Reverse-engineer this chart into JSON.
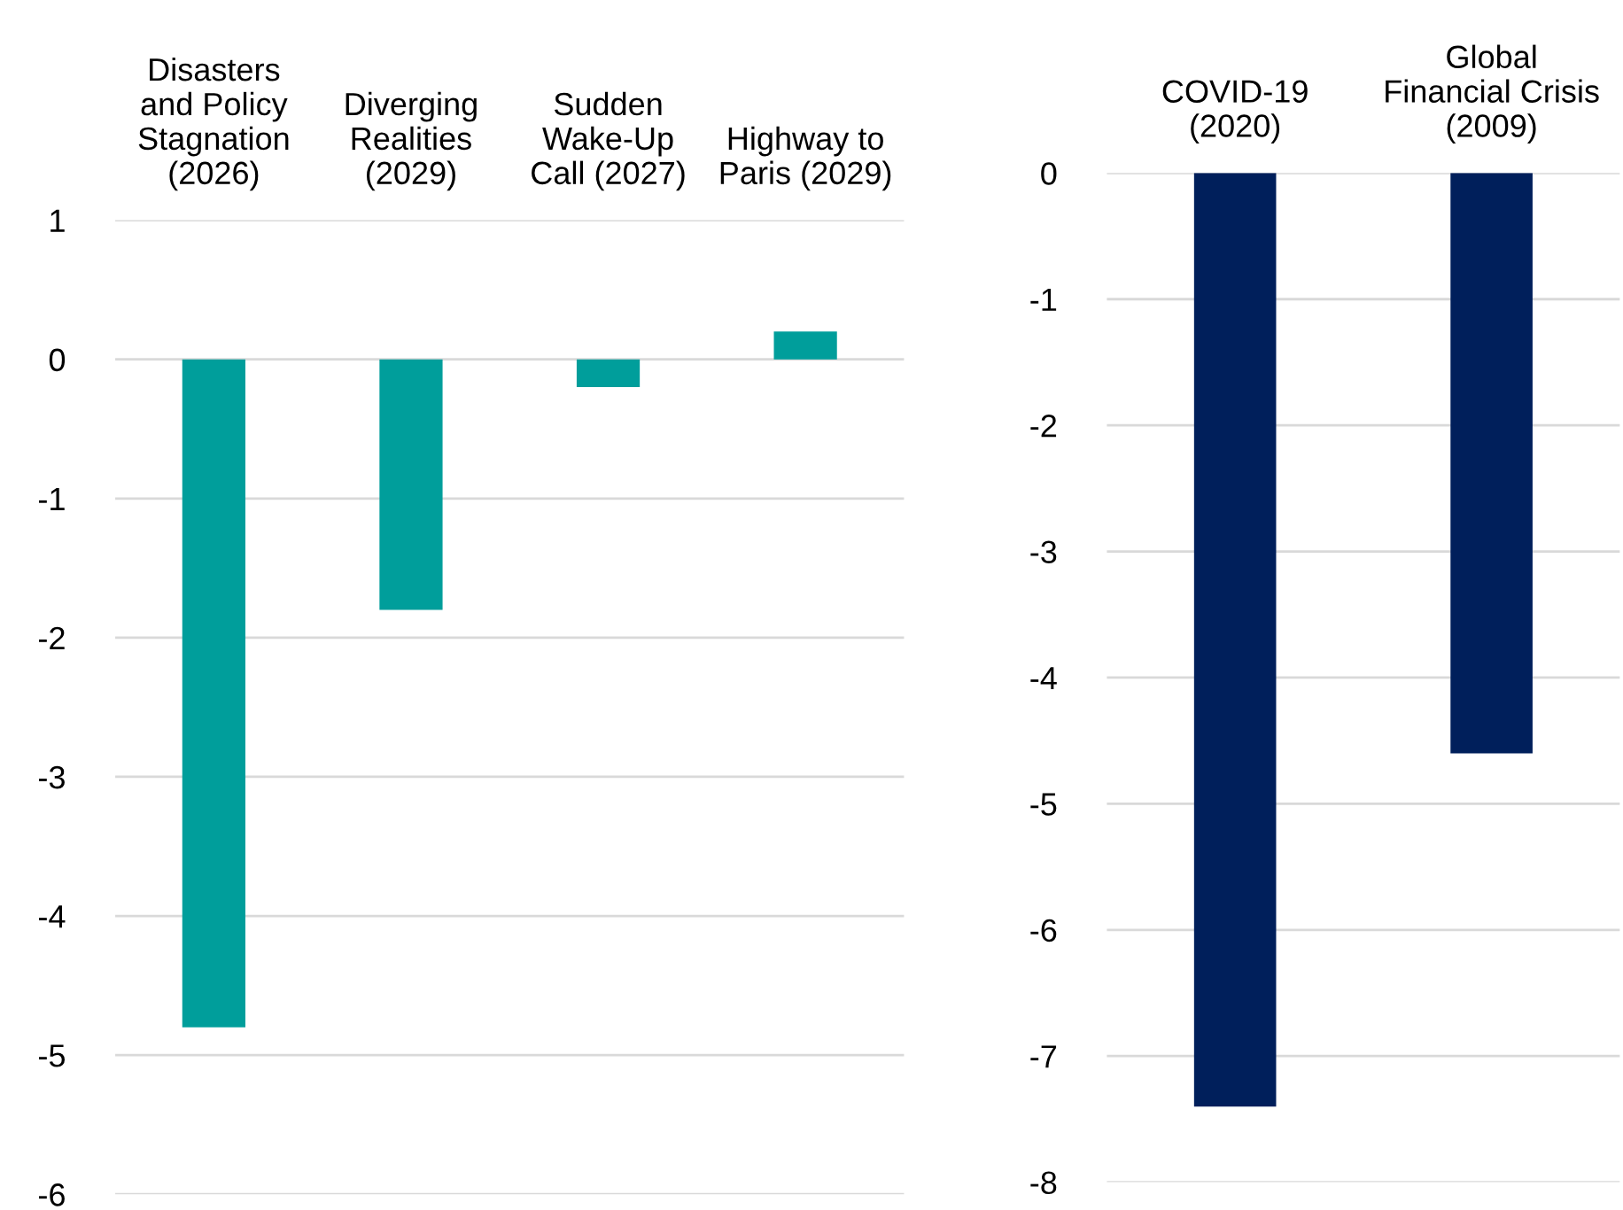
{
  "chart_data": [
    {
      "type": "bar",
      "categories": [
        "Disasters\nand Policy\nStagnation\n(2026)",
        "Diverging\nRealities\n(2029)",
        "Sudden\nWake-Up\nCall (2027)",
        "Highway to\nParis (2029)"
      ],
      "values": [
        -4.8,
        -1.8,
        -0.2,
        0.2
      ],
      "color": "#009e9b",
      "ylim": [
        -6,
        1
      ],
      "yticks": [
        -6,
        -5,
        -4,
        -3,
        -2,
        -1,
        0,
        1
      ],
      "grid": "y"
    },
    {
      "type": "bar",
      "categories": [
        "COVID-19\n(2020)",
        "Global\nFinancial Crisis\n(2009)"
      ],
      "values": [
        -7.4,
        -4.6
      ],
      "color": "#001f5b",
      "ylim": [
        -8,
        0
      ],
      "yticks": [
        -8,
        -7,
        -6,
        -5,
        -4,
        -3,
        -2,
        -1,
        0
      ],
      "grid": "y"
    }
  ]
}
